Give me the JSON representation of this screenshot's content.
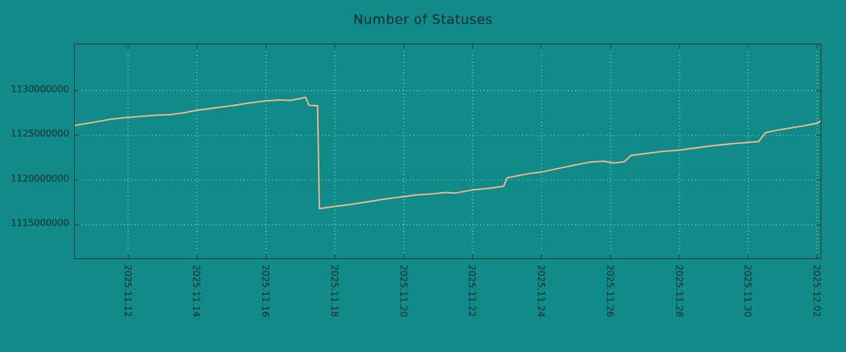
{
  "colors": {
    "background": "#118a8a",
    "line": "#f2bd8a",
    "grid": "#cdeeee",
    "axis": "#053232",
    "text": "#082a2a"
  },
  "chart_data": {
    "type": "line",
    "title": "Number of Statuses",
    "xlabel": "",
    "ylabel": "",
    "legend": "none",
    "grid": true,
    "x_axis": {
      "tick_labels": [
        "2025.11.12",
        "2025.11.14",
        "2025.11.16",
        "2025.11.18",
        "2025.11.20",
        "2025.11.22",
        "2025.11.24",
        "2025.11.26",
        "2025.11.28",
        "2025.11.30",
        "2025.12.02"
      ],
      "tick_days": [
        2,
        4,
        6,
        8,
        10,
        12,
        14,
        16,
        18,
        20,
        22
      ],
      "xlim_days": [
        0.45,
        22.1
      ]
    },
    "y_axis": {
      "tick_labels": [
        "1115000000",
        "1120000000",
        "1125000000",
        "1130000000"
      ],
      "tick_values": [
        1115000000,
        1120000000,
        1125000000,
        1130000000
      ],
      "ylim": [
        1111250000,
        1135160000
      ]
    },
    "series": [
      {
        "name": "number-of-statuses",
        "color": "#f2bd8a",
        "points": [
          [
            0.45,
            1126100000
          ],
          [
            1.0,
            1126450000
          ],
          [
            1.5,
            1126800000
          ],
          [
            2.0,
            1127000000
          ],
          [
            2.3,
            1127100000
          ],
          [
            2.8,
            1127250000
          ],
          [
            3.2,
            1127300000
          ],
          [
            3.6,
            1127500000
          ],
          [
            4.0,
            1127800000
          ],
          [
            4.5,
            1128050000
          ],
          [
            5.0,
            1128300000
          ],
          [
            5.5,
            1128600000
          ],
          [
            6.0,
            1128850000
          ],
          [
            6.4,
            1128950000
          ],
          [
            6.7,
            1128900000
          ],
          [
            7.0,
            1129100000
          ],
          [
            7.15,
            1129250000
          ],
          [
            7.25,
            1128350000
          ],
          [
            7.5,
            1128300000
          ],
          [
            7.55,
            1116800000
          ],
          [
            7.8,
            1116950000
          ],
          [
            8.0,
            1117050000
          ],
          [
            8.5,
            1117300000
          ],
          [
            9.0,
            1117600000
          ],
          [
            9.5,
            1117900000
          ],
          [
            10.0,
            1118150000
          ],
          [
            10.4,
            1118350000
          ],
          [
            10.8,
            1118450000
          ],
          [
            11.2,
            1118600000
          ],
          [
            11.5,
            1118550000
          ],
          [
            12.0,
            1118900000
          ],
          [
            12.5,
            1119100000
          ],
          [
            12.9,
            1119300000
          ],
          [
            13.0,
            1120250000
          ],
          [
            13.2,
            1120400000
          ],
          [
            13.6,
            1120700000
          ],
          [
            14.0,
            1120900000
          ],
          [
            14.5,
            1121300000
          ],
          [
            15.0,
            1121700000
          ],
          [
            15.4,
            1122000000
          ],
          [
            15.8,
            1122100000
          ],
          [
            16.1,
            1121900000
          ],
          [
            16.4,
            1122050000
          ],
          [
            16.6,
            1122750000
          ],
          [
            17.0,
            1122950000
          ],
          [
            17.5,
            1123200000
          ],
          [
            18.0,
            1123350000
          ],
          [
            18.4,
            1123550000
          ],
          [
            19.0,
            1123850000
          ],
          [
            19.5,
            1124050000
          ],
          [
            20.0,
            1124200000
          ],
          [
            20.3,
            1124300000
          ],
          [
            20.5,
            1125300000
          ],
          [
            20.8,
            1125550000
          ],
          [
            21.2,
            1125800000
          ],
          [
            21.6,
            1126050000
          ],
          [
            22.0,
            1126350000
          ],
          [
            22.1,
            1126600000
          ]
        ]
      }
    ]
  }
}
